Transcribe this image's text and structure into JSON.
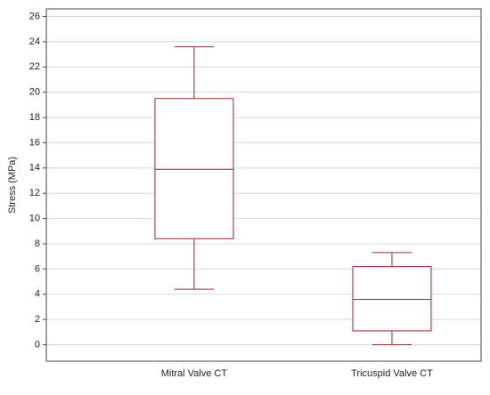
{
  "chart_data": {
    "type": "box",
    "y_label": "Stress (MPa)",
    "categories": [
      "Mitral Valve CT",
      "Tricuspid Valve CT"
    ],
    "min": [
      4.4,
      0
    ],
    "q1": [
      8.4,
      1.1
    ],
    "median": [
      13.9,
      3.6
    ],
    "q3": [
      19.5,
      6.2
    ],
    "max": [
      23.6,
      7.3
    ],
    "color": "#9b2a2a",
    "grid": true,
    "ylim": [
      -1.3,
      26.6
    ],
    "yticks": [
      0,
      2,
      4,
      6,
      8,
      10,
      12,
      14,
      16,
      18,
      20,
      22,
      24,
      26
    ]
  }
}
